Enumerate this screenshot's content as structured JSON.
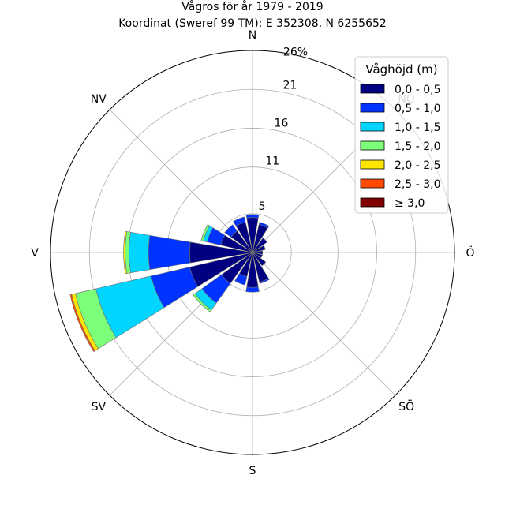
{
  "chart_data": {
    "type": "wind-rose",
    "title_line1": "Vågros för år 1979 - 2019",
    "title_line2": "Koordinat (Sweref 99 TM): E 352308, N 6255652",
    "directions": [
      "N",
      "NNO",
      "NO",
      "ONO",
      "Ö",
      "OSO",
      "SO",
      "SSO",
      "S",
      "SSV",
      "SV",
      "VSV",
      "V",
      "VNV",
      "NV",
      "NNV"
    ],
    "compass_labels": [
      {
        "label": "N",
        "angle": 0
      },
      {
        "label": "NO",
        "angle": 45
      },
      {
        "label": "Ö",
        "angle": 90
      },
      {
        "label": "SÖ",
        "angle": 135
      },
      {
        "label": "S",
        "angle": 180
      },
      {
        "label": "SV",
        "angle": 225
      },
      {
        "label": "V",
        "angle": 270
      },
      {
        "label": "NV",
        "angle": 315
      }
    ],
    "radial_ticks": [
      5,
      11,
      16,
      21
    ],
    "radial_tick_labels": [
      "5",
      "11",
      "16",
      "21"
    ],
    "rmax": 26,
    "rmax_label": "26%",
    "legend_title": "Våghöjd (m)",
    "legend_position": "top-right",
    "bins": [
      {
        "label": "0,0 - 0,5",
        "color": "#000080"
      },
      {
        "label": "0,5 - 1,0",
        "color": "#0033ff"
      },
      {
        "label": "1,0 - 1,5",
        "color": "#00d5ff"
      },
      {
        "label": "1,5 - 2,0",
        "color": "#7cff79"
      },
      {
        "label": "2,0 - 2,5",
        "color": "#ffe600"
      },
      {
        "label": "2,5 - 3,0",
        "color": "#ff4a00"
      },
      {
        "label": "≥ 3,0",
        "color": "#800000"
      }
    ],
    "series": [
      {
        "direction": "N",
        "values": [
          4.5,
          0.4,
          0,
          0,
          0,
          0,
          0
        ]
      },
      {
        "direction": "NNO",
        "values": [
          3.7,
          0.3,
          0,
          0,
          0,
          0,
          0
        ]
      },
      {
        "direction": "NO",
        "values": [
          2.3,
          0,
          0,
          0,
          0,
          0,
          0
        ]
      },
      {
        "direction": "ONO",
        "values": [
          1.7,
          0,
          0,
          0,
          0,
          0,
          0
        ]
      },
      {
        "direction": "Ö",
        "values": [
          1.3,
          0,
          0,
          0,
          0,
          0,
          0
        ]
      },
      {
        "direction": "OSO",
        "values": [
          1.3,
          0,
          0,
          0,
          0,
          0,
          0
        ]
      },
      {
        "direction": "SO",
        "values": [
          2.1,
          0,
          0,
          0,
          0,
          0,
          0
        ]
      },
      {
        "direction": "SSO",
        "values": [
          3.9,
          0.2,
          0,
          0,
          0,
          0,
          0
        ]
      },
      {
        "direction": "S",
        "values": [
          4.5,
          0.6,
          0,
          0,
          0,
          0,
          0
        ]
      },
      {
        "direction": "SSV",
        "values": [
          3.2,
          1.1,
          0,
          0,
          0,
          0,
          0
        ]
      },
      {
        "direction": "SV",
        "values": [
          4.9,
          3.1,
          1.1,
          0.3,
          0,
          0,
          0
        ]
      },
      {
        "direction": "VSV",
        "values": [
          8.3,
          5.1,
          7.3,
          2.7,
          0.5,
          0.2,
          0
        ]
      },
      {
        "direction": "V",
        "values": [
          8.1,
          5.3,
          2.5,
          0.5,
          0.2,
          0,
          0
        ]
      },
      {
        "direction": "VNV",
        "values": [
          4.2,
          1.8,
          0.5,
          0.3,
          0,
          0,
          0
        ]
      },
      {
        "direction": "NV",
        "values": [
          3.4,
          1.0,
          0,
          0,
          0,
          0,
          0
        ]
      },
      {
        "direction": "NNV",
        "values": [
          4.0,
          0.7,
          0,
          0,
          0,
          0,
          0
        ]
      }
    ]
  }
}
